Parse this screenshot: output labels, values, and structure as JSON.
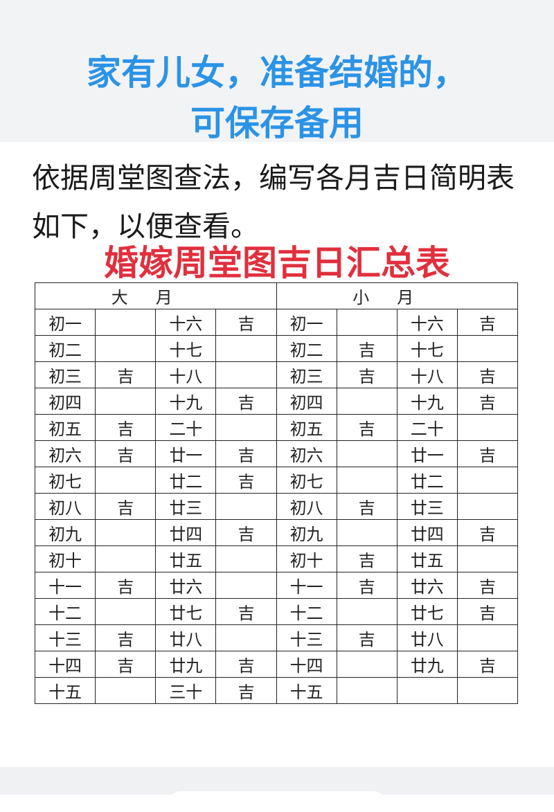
{
  "headline": {
    "line1": "家有儿女，准备结婚的，",
    "line2": "可保存备用"
  },
  "intro": "依据周堂图查法，编写各月吉日简明表如下，以便查看。",
  "table_title": "婚嫁周堂图吉日汇总表",
  "colors": {
    "headline": "#2b93e6",
    "table_title": "#e0303e"
  },
  "table": {
    "headers": [
      "大月",
      "小月"
    ],
    "rows": [
      [
        "初一",
        "",
        "十六",
        "吉",
        "初一",
        "",
        "十六",
        "吉"
      ],
      [
        "初二",
        "",
        "十七",
        "",
        "初二",
        "吉",
        "十七",
        ""
      ],
      [
        "初三",
        "吉",
        "十八",
        "",
        "初三",
        "吉",
        "十八",
        "吉"
      ],
      [
        "初四",
        "",
        "十九",
        "吉",
        "初四",
        "",
        "十九",
        "吉"
      ],
      [
        "初五",
        "吉",
        "二十",
        "",
        "初五",
        "吉",
        "二十",
        ""
      ],
      [
        "初六",
        "吉",
        "廿一",
        "吉",
        "初六",
        "",
        "廿一",
        "吉"
      ],
      [
        "初七",
        "",
        "廿二",
        "吉",
        "初七",
        "",
        "廿二",
        ""
      ],
      [
        "初八",
        "吉",
        "廿三",
        "",
        "初八",
        "吉",
        "廿三",
        ""
      ],
      [
        "初九",
        "",
        "廿四",
        "吉",
        "初九",
        "",
        "廿四",
        "吉"
      ],
      [
        "初十",
        "",
        "廿五",
        "",
        "初十",
        "吉",
        "廿五",
        ""
      ],
      [
        "十一",
        "吉",
        "廿六",
        "",
        "十一",
        "吉",
        "廿六",
        "吉"
      ],
      [
        "十二",
        "",
        "廿七",
        "吉",
        "十二",
        "",
        "廿七",
        "吉"
      ],
      [
        "十三",
        "吉",
        "廿八",
        "",
        "十三",
        "吉",
        "廿八",
        ""
      ],
      [
        "十四",
        "吉",
        "廿九",
        "吉",
        "十四",
        "",
        "廿九",
        "吉"
      ],
      [
        "十五",
        "",
        "三十",
        "吉",
        "十五",
        "",
        "",
        ""
      ]
    ]
  }
}
